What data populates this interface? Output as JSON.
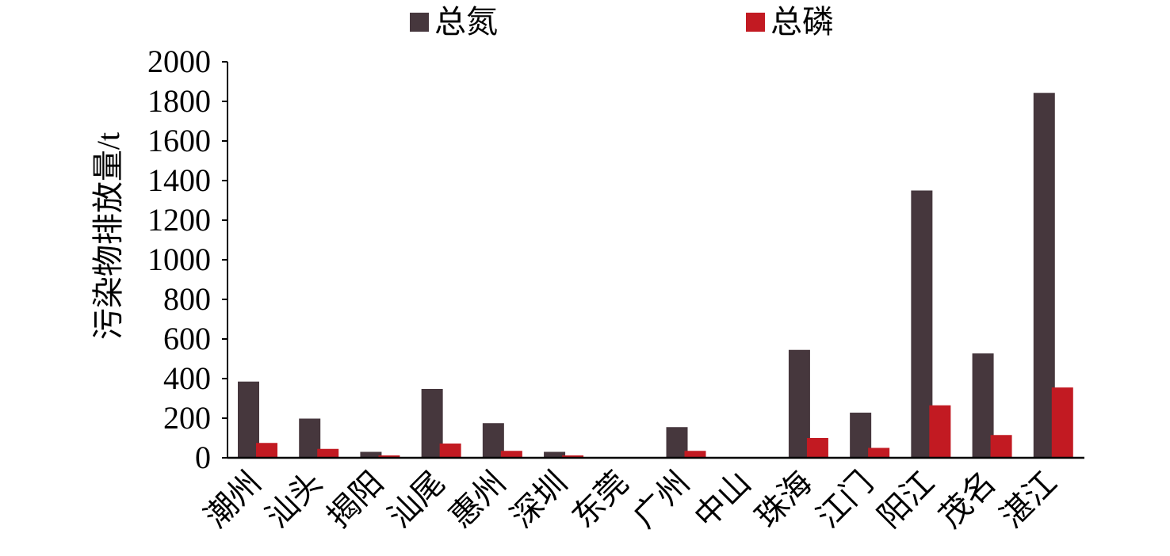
{
  "chart_data": {
    "type": "bar",
    "ylabel": "污染物排放量/t",
    "xlabel": "",
    "ylim": [
      0,
      2000
    ],
    "yticks": [
      0,
      200,
      400,
      600,
      800,
      1000,
      1200,
      1400,
      1600,
      1800,
      2000
    ],
    "grid": false,
    "legend_position": "top",
    "categories": [
      "潮州",
      "汕头",
      "揭阳",
      "汕尾",
      "惠州",
      "深圳",
      "东莞",
      "广州",
      "中山",
      "珠海",
      "江门",
      "阳江",
      "茂名",
      "湛江"
    ],
    "series": [
      {
        "name": "总氮",
        "color": "#46373d",
        "values": [
          385,
          198,
          30,
          348,
          175,
          30,
          0,
          155,
          0,
          545,
          228,
          1350,
          527,
          1843
        ]
      },
      {
        "name": "总磷",
        "color": "#c21a22",
        "values": [
          75,
          45,
          12,
          72,
          35,
          12,
          0,
          35,
          0,
          100,
          50,
          265,
          115,
          355
        ]
      }
    ]
  }
}
